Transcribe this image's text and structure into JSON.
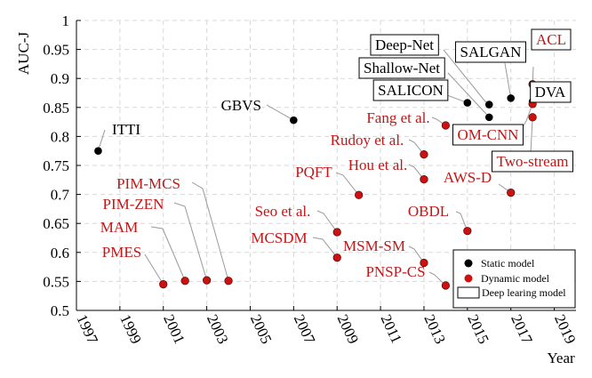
{
  "chart_data": {
    "type": "scatter",
    "xlabel": "Year",
    "ylabel": "AUC-J",
    "xlim": [
      1997,
      2020
    ],
    "ylim": [
      0.5,
      1
    ],
    "x_ticks": [
      "1997",
      "1999",
      "2001",
      "2003",
      "2005",
      "2007",
      "2009",
      "2011",
      "2013",
      "2015",
      "2017",
      "2019"
    ],
    "y_ticks": [
      "0.5",
      "0.55",
      "0.6",
      "0.65",
      "0.7",
      "0.75",
      "0.8",
      "0.85",
      "0.9",
      "0.95",
      "1"
    ],
    "grid": true,
    "legend_position": "bottom-right",
    "legend": [
      {
        "label": "Static model",
        "kind": "static"
      },
      {
        "label": "Dynamic model",
        "kind": "dynamic"
      },
      {
        "label": "Deep learing model",
        "kind": "box"
      }
    ],
    "colors": {
      "static": "#000000",
      "dynamic": "#cc1111",
      "dynamic_label": "#c01818",
      "grid": "#d8d8d8"
    },
    "points": [
      {
        "label": "ITTI",
        "x": 1998,
        "y": 0.775,
        "kind": "static",
        "deep": false
      },
      {
        "label": "GBVS",
        "x": 2007,
        "y": 0.828,
        "kind": "static",
        "deep": false
      },
      {
        "label": "SALICON",
        "x": 2015,
        "y": 0.858,
        "kind": "static",
        "deep": true
      },
      {
        "label": "Shallow-Net",
        "x": 2016,
        "y": 0.833,
        "kind": "static",
        "deep": true
      },
      {
        "label": "Deep-Net",
        "x": 2016,
        "y": 0.855,
        "kind": "static",
        "deep": true
      },
      {
        "label": "SALGAN",
        "x": 2017,
        "y": 0.866,
        "kind": "static",
        "deep": true
      },
      {
        "label": "DVA",
        "x": 2018,
        "y": 0.86,
        "kind": "static",
        "deep": true
      },
      {
        "label": "PMES",
        "x": 2001,
        "y": 0.545,
        "kind": "dynamic",
        "deep": false
      },
      {
        "label": "MAM",
        "x": 2002,
        "y": 0.551,
        "kind": "dynamic",
        "deep": false
      },
      {
        "label": "PIM-ZEN",
        "x": 2003,
        "y": 0.552,
        "kind": "dynamic",
        "deep": false
      },
      {
        "label": "PIM-MCS",
        "x": 2004,
        "y": 0.551,
        "kind": "dynamic",
        "deep": false
      },
      {
        "label": "MCSDM",
        "x": 2009,
        "y": 0.591,
        "kind": "dynamic",
        "deep": false
      },
      {
        "label": "Seo et al.",
        "x": 2009,
        "y": 0.635,
        "kind": "dynamic",
        "deep": false
      },
      {
        "label": "PQFT",
        "x": 2010,
        "y": 0.699,
        "kind": "dynamic",
        "deep": false
      },
      {
        "label": "MSM-SM",
        "x": 2013,
        "y": 0.582,
        "kind": "dynamic",
        "deep": false
      },
      {
        "label": "Hou et al.",
        "x": 2013,
        "y": 0.726,
        "kind": "dynamic",
        "deep": false
      },
      {
        "label": "Rudoy et al.",
        "x": 2013,
        "y": 0.769,
        "kind": "dynamic",
        "deep": false
      },
      {
        "label": "PNSP-CS",
        "x": 2014,
        "y": 0.543,
        "kind": "dynamic",
        "deep": false
      },
      {
        "label": "Fang et al.",
        "x": 2014,
        "y": 0.819,
        "kind": "dynamic",
        "deep": false
      },
      {
        "label": "OBDL",
        "x": 2015,
        "y": 0.637,
        "kind": "dynamic",
        "deep": false
      },
      {
        "label": "AWS-D",
        "x": 2017,
        "y": 0.703,
        "kind": "dynamic",
        "deep": false
      },
      {
        "label": "OM-CNN",
        "x": 2018,
        "y": 0.856,
        "kind": "dynamic",
        "deep": true
      },
      {
        "label": "Two-stream",
        "x": 2018,
        "y": 0.833,
        "kind": "dynamic",
        "deep": true
      },
      {
        "label": "ACL",
        "x": 2018,
        "y": 0.89,
        "kind": "dynamic",
        "deep": true
      }
    ]
  }
}
